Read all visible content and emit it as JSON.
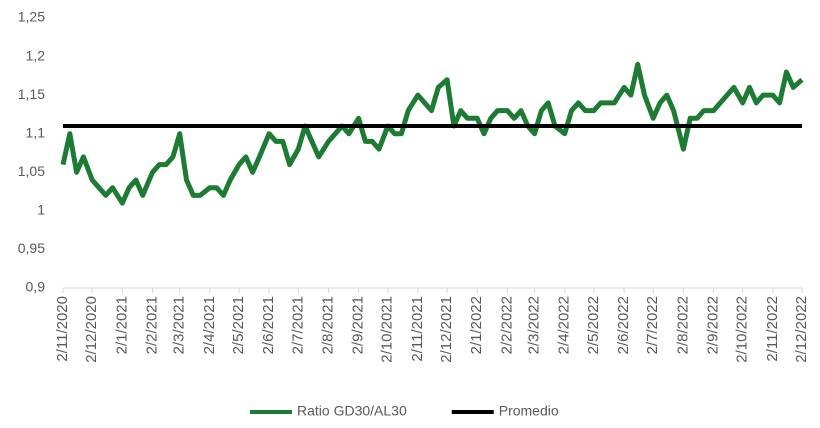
{
  "chart_data": {
    "type": "line",
    "ylim": [
      0.9,
      1.25
    ],
    "yticks": [
      {
        "value": 0.9,
        "label": "0,9"
      },
      {
        "value": 0.95,
        "label": "0,95"
      },
      1,
      {
        "value": 1.05,
        "label": "1,05"
      },
      {
        "value": 1.1,
        "label": "1,1"
      },
      {
        "value": 1.15,
        "label": "1,15"
      },
      {
        "value": 1.2,
        "label": "1,2"
      },
      {
        "value": 1.25,
        "label": "1,25"
      }
    ],
    "xlim": [
      "2020-11-02",
      "2022-12-02"
    ],
    "xticks": [
      {
        "value": "2020-11-02",
        "label": "2/11/2020"
      },
      {
        "value": "2020-12-02",
        "label": "2/12/2020"
      },
      {
        "value": "2021-01-02",
        "label": "2/1/2021"
      },
      {
        "value": "2021-02-02",
        "label": "2/2/2021"
      },
      {
        "value": "2021-03-02",
        "label": "2/3/2021"
      },
      {
        "value": "2021-04-02",
        "label": "2/4/2021"
      },
      {
        "value": "2021-05-02",
        "label": "2/5/2021"
      },
      {
        "value": "2021-06-02",
        "label": "2/6/2021"
      },
      {
        "value": "2021-07-02",
        "label": "2/7/2021"
      },
      {
        "value": "2021-08-02",
        "label": "2/8/2021"
      },
      {
        "value": "2021-09-02",
        "label": "2/9/2021"
      },
      {
        "value": "2021-10-02",
        "label": "2/10/2021"
      },
      {
        "value": "2021-11-02",
        "label": "2/11/2021"
      },
      {
        "value": "2021-12-02",
        "label": "2/12/2021"
      },
      {
        "value": "2022-01-02",
        "label": "2/1/2022"
      },
      {
        "value": "2022-02-02",
        "label": "2/2/2022"
      },
      {
        "value": "2022-03-02",
        "label": "2/3/2022"
      },
      {
        "value": "2022-04-02",
        "label": "2/4/2022"
      },
      {
        "value": "2022-05-02",
        "label": "2/5/2022"
      },
      {
        "value": "2022-06-02",
        "label": "2/6/2022"
      },
      {
        "value": "2022-07-02",
        "label": "2/7/2022"
      },
      {
        "value": "2022-08-02",
        "label": "2/8/2022"
      },
      {
        "value": "2022-09-02",
        "label": "2/9/2022"
      },
      {
        "value": "2022-10-02",
        "label": "2/10/2022"
      },
      {
        "value": "2022-11-02",
        "label": "2/11/2022"
      },
      {
        "value": "2022-12-02",
        "label": "2/12/2022"
      }
    ],
    "legend": "bottom",
    "series": [
      {
        "name": "Ratio GD30/AL30",
        "color": "#1e7b34",
        "x": [
          "2020-11-02",
          "2020-11-09",
          "2020-11-16",
          "2020-11-23",
          "2020-12-02",
          "2020-12-09",
          "2020-12-16",
          "2020-12-23",
          "2021-01-02",
          "2021-01-09",
          "2021-01-16",
          "2021-01-23",
          "2021-02-02",
          "2021-02-09",
          "2021-02-16",
          "2021-02-23",
          "2021-03-02",
          "2021-03-09",
          "2021-03-16",
          "2021-03-23",
          "2021-04-02",
          "2021-04-09",
          "2021-04-16",
          "2021-04-23",
          "2021-05-02",
          "2021-05-09",
          "2021-05-16",
          "2021-05-23",
          "2021-06-02",
          "2021-06-09",
          "2021-06-16",
          "2021-06-23",
          "2021-07-02",
          "2021-07-09",
          "2021-07-16",
          "2021-07-23",
          "2021-08-02",
          "2021-08-09",
          "2021-08-16",
          "2021-08-23",
          "2021-09-02",
          "2021-09-09",
          "2021-09-16",
          "2021-09-23",
          "2021-10-02",
          "2021-10-09",
          "2021-10-16",
          "2021-10-23",
          "2021-11-02",
          "2021-11-09",
          "2021-11-16",
          "2021-11-23",
          "2021-12-02",
          "2021-12-09",
          "2021-12-16",
          "2021-12-23",
          "2022-01-02",
          "2022-01-09",
          "2022-01-16",
          "2022-01-23",
          "2022-02-02",
          "2022-02-09",
          "2022-02-16",
          "2022-02-23",
          "2022-03-02",
          "2022-03-09",
          "2022-03-16",
          "2022-03-23",
          "2022-04-02",
          "2022-04-09",
          "2022-04-16",
          "2022-04-23",
          "2022-05-02",
          "2022-05-09",
          "2022-05-16",
          "2022-05-23",
          "2022-06-02",
          "2022-06-09",
          "2022-06-16",
          "2022-06-23",
          "2022-07-02",
          "2022-07-09",
          "2022-07-16",
          "2022-07-23",
          "2022-08-02",
          "2022-08-09",
          "2022-08-16",
          "2022-08-23",
          "2022-09-02",
          "2022-09-09",
          "2022-09-16",
          "2022-09-23",
          "2022-10-02",
          "2022-10-09",
          "2022-10-16",
          "2022-10-23",
          "2022-11-02",
          "2022-11-09",
          "2022-11-16",
          "2022-11-23",
          "2022-12-02"
        ],
        "values": [
          1.06,
          1.1,
          1.05,
          1.07,
          1.04,
          1.03,
          1.02,
          1.03,
          1.01,
          1.03,
          1.04,
          1.02,
          1.05,
          1.06,
          1.06,
          1.07,
          1.1,
          1.04,
          1.02,
          1.02,
          1.03,
          1.03,
          1.02,
          1.04,
          1.06,
          1.07,
          1.05,
          1.07,
          1.1,
          1.09,
          1.09,
          1.06,
          1.08,
          1.11,
          1.09,
          1.07,
          1.09,
          1.1,
          1.11,
          1.1,
          1.12,
          1.09,
          1.09,
          1.08,
          1.11,
          1.1,
          1.1,
          1.13,
          1.15,
          1.14,
          1.13,
          1.16,
          1.17,
          1.11,
          1.13,
          1.12,
          1.12,
          1.1,
          1.12,
          1.13,
          1.13,
          1.12,
          1.13,
          1.11,
          1.1,
          1.13,
          1.14,
          1.11,
          1.1,
          1.13,
          1.14,
          1.13,
          1.13,
          1.14,
          1.14,
          1.14,
          1.16,
          1.15,
          1.19,
          1.15,
          1.12,
          1.14,
          1.15,
          1.13,
          1.08,
          1.12,
          1.12,
          1.13,
          1.13,
          1.14,
          1.15,
          1.16,
          1.14,
          1.16,
          1.14,
          1.15,
          1.15,
          1.14,
          1.18,
          1.16,
          1.17
        ]
      },
      {
        "name": "Promedio",
        "color": "#000000",
        "x": [
          "2020-11-02",
          "2022-12-02"
        ],
        "values": [
          1.11,
          1.11
        ]
      }
    ]
  }
}
